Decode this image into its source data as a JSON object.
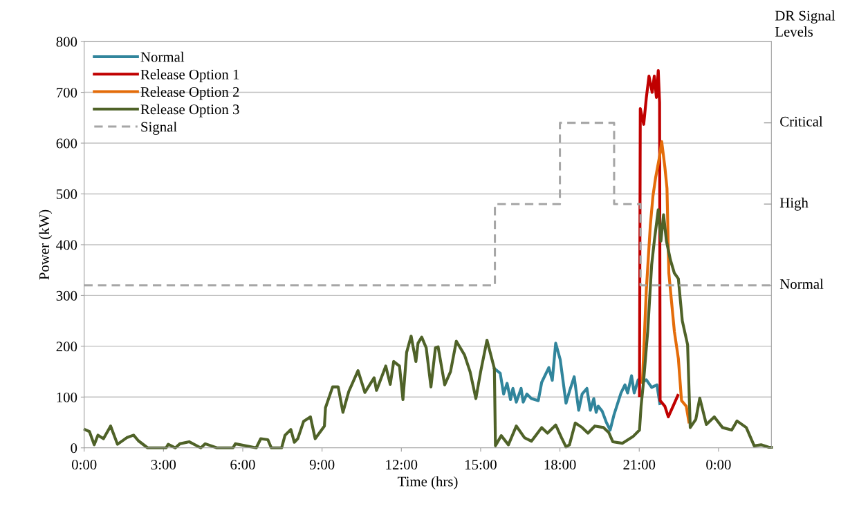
{
  "chart_data": {
    "type": "line",
    "xlabel": "Time (hrs)",
    "ylabel": "Power (kW)",
    "annotations": [
      "DR Signal Levels",
      "Normal",
      "High",
      "Critical"
    ],
    "xlim": [
      0,
      26
    ],
    "xticks": [
      {
        "value": 0,
        "label": "0:00"
      },
      {
        "value": 3,
        "label": "3:00"
      },
      {
        "value": 6,
        "label": "6:00"
      },
      {
        "value": 9,
        "label": "9:00"
      },
      {
        "value": 12,
        "label": "12:00"
      },
      {
        "value": 15,
        "label": "15:00"
      },
      {
        "value": 18,
        "label": "18:00"
      },
      {
        "value": 21,
        "label": "21:00"
      },
      {
        "value": 24,
        "label": "0:00"
      }
    ],
    "ylim": [
      0,
      800
    ],
    "yticks": [
      0,
      100,
      200,
      300,
      400,
      500,
      600,
      700,
      800
    ],
    "grid": "y",
    "legend": "top left",
    "marker": "none",
    "series": [
      {
        "name": "Normal",
        "color": "#31859c",
        "line_style": "solid",
        "x": [
          15.52,
          15.74,
          15.87,
          16.0,
          16.13,
          16.22,
          16.35,
          16.53,
          16.61,
          16.75,
          16.92,
          17.18,
          17.31,
          17.58,
          17.71,
          17.84,
          18.01,
          18.23,
          18.36,
          18.54,
          18.71,
          18.84,
          19.02,
          19.15,
          19.28,
          19.37,
          19.45,
          19.6,
          19.75,
          19.9,
          20.05,
          20.31,
          20.46,
          20.56,
          20.71,
          20.81,
          20.96,
          21.12,
          21.27,
          21.47,
          21.67,
          21.78
        ],
        "values": [
          156,
          147,
          106,
          127,
          95,
          117,
          90,
          117,
          90,
          106,
          97,
          93,
          129,
          158,
          133,
          206,
          174,
          88,
          111,
          140,
          74,
          106,
          117,
          74,
          97,
          70,
          82,
          72,
          51,
          35,
          66,
          108,
          124,
          108,
          142,
          108,
          134,
          129,
          134,
          119,
          124,
          87
        ]
      },
      {
        "name": "Release Option 1",
        "color": "#c00000",
        "line_style": "solid",
        "x": [
          21.01,
          21.04,
          21.17,
          21.27,
          21.37,
          21.49,
          21.57,
          21.65,
          21.72,
          21.77,
          21.79,
          21.97,
          22.1,
          22.28,
          22.46
        ],
        "values": [
          103,
          668,
          637,
          690,
          732,
          700,
          732,
          690,
          743,
          680,
          93,
          82,
          61,
          82,
          103
        ]
      },
      {
        "name": "Release Option 2",
        "color": "#e46c0a",
        "line_style": "solid",
        "x": [
          21.12,
          21.27,
          21.42,
          21.52,
          21.62,
          21.77,
          21.85,
          21.97,
          22.05,
          22.12,
          22.33,
          22.48,
          22.6,
          22.78,
          22.88
        ],
        "values": [
          129,
          312,
          438,
          496,
          532,
          574,
          603,
          553,
          511,
          344,
          229,
          176,
          93,
          82,
          51
        ]
      },
      {
        "name": "Release Option 3",
        "color": "#4f6228",
        "line_style": "solid",
        "x": [
          0.03,
          0.2,
          0.38,
          0.52,
          0.73,
          1.0,
          1.26,
          1.61,
          1.87,
          2.05,
          2.4,
          3.1,
          3.18,
          3.45,
          3.62,
          3.97,
          4.41,
          4.58,
          5.02,
          5.63,
          5.72,
          6.51,
          6.68,
          6.95,
          7.08,
          7.47,
          7.6,
          7.82,
          7.95,
          8.08,
          8.3,
          8.56,
          8.74,
          9.09,
          9.13,
          9.4,
          9.61,
          9.79,
          10.01,
          10.36,
          10.62,
          10.97,
          11.06,
          11.41,
          11.58,
          11.71,
          11.93,
          12.06,
          12.2,
          12.37,
          12.55,
          12.63,
          12.77,
          12.94,
          13.12,
          13.29,
          13.39,
          13.64,
          13.86,
          14.08,
          14.39,
          14.6,
          14.82,
          15.0,
          15.24,
          15.52,
          15.56,
          15.78,
          16.05,
          16.35,
          16.66,
          16.92,
          17.31,
          17.53,
          17.84,
          18.06,
          18.23,
          18.36,
          18.58,
          18.84,
          19.06,
          19.32,
          19.65,
          19.85,
          20.0,
          20.36,
          20.76,
          21.01,
          21.07,
          21.17,
          21.32,
          21.47,
          21.57,
          21.72,
          21.82,
          21.92,
          22.03,
          22.18,
          22.33,
          22.48,
          22.63,
          22.83,
          22.93,
          23.14,
          23.29,
          23.54,
          23.84,
          24.15,
          24.5,
          24.7,
          25.05,
          25.35,
          25.61,
          25.91,
          26.0
        ],
        "values": [
          36,
          32,
          6,
          25,
          18,
          43,
          7,
          20,
          25,
          14,
          0,
          0,
          7,
          0,
          8,
          12,
          0,
          8,
          0,
          0,
          8,
          0,
          18,
          16,
          0,
          0,
          25,
          36,
          11,
          18,
          52,
          61,
          18,
          43,
          79,
          120,
          120,
          70,
          111,
          152,
          109,
          138,
          113,
          161,
          125,
          170,
          161,
          95,
          188,
          220,
          170,
          206,
          218,
          197,
          120,
          197,
          199,
          124,
          150,
          210,
          183,
          150,
          97,
          150,
          212,
          156,
          4,
          24,
          6,
          43,
          20,
          13,
          40,
          29,
          45,
          20,
          2,
          6,
          49,
          40,
          29,
          43,
          40,
          30,
          12,
          9,
          22,
          35,
          82,
          134,
          229,
          360,
          407,
          469,
          407,
          459,
          407,
          370,
          344,
          333,
          250,
          203,
          40,
          56,
          98,
          46,
          61,
          40,
          35,
          53,
          40,
          4,
          6,
          1,
          1
        ]
      },
      {
        "name": "Signal",
        "type": "step",
        "color": "#a6a6a6",
        "line_style": "dashed",
        "x": [
          0,
          15.54,
          18.0,
          20.05,
          21.05,
          26
        ],
        "values": [
          320,
          480,
          640,
          480,
          320,
          320
        ]
      }
    ]
  }
}
